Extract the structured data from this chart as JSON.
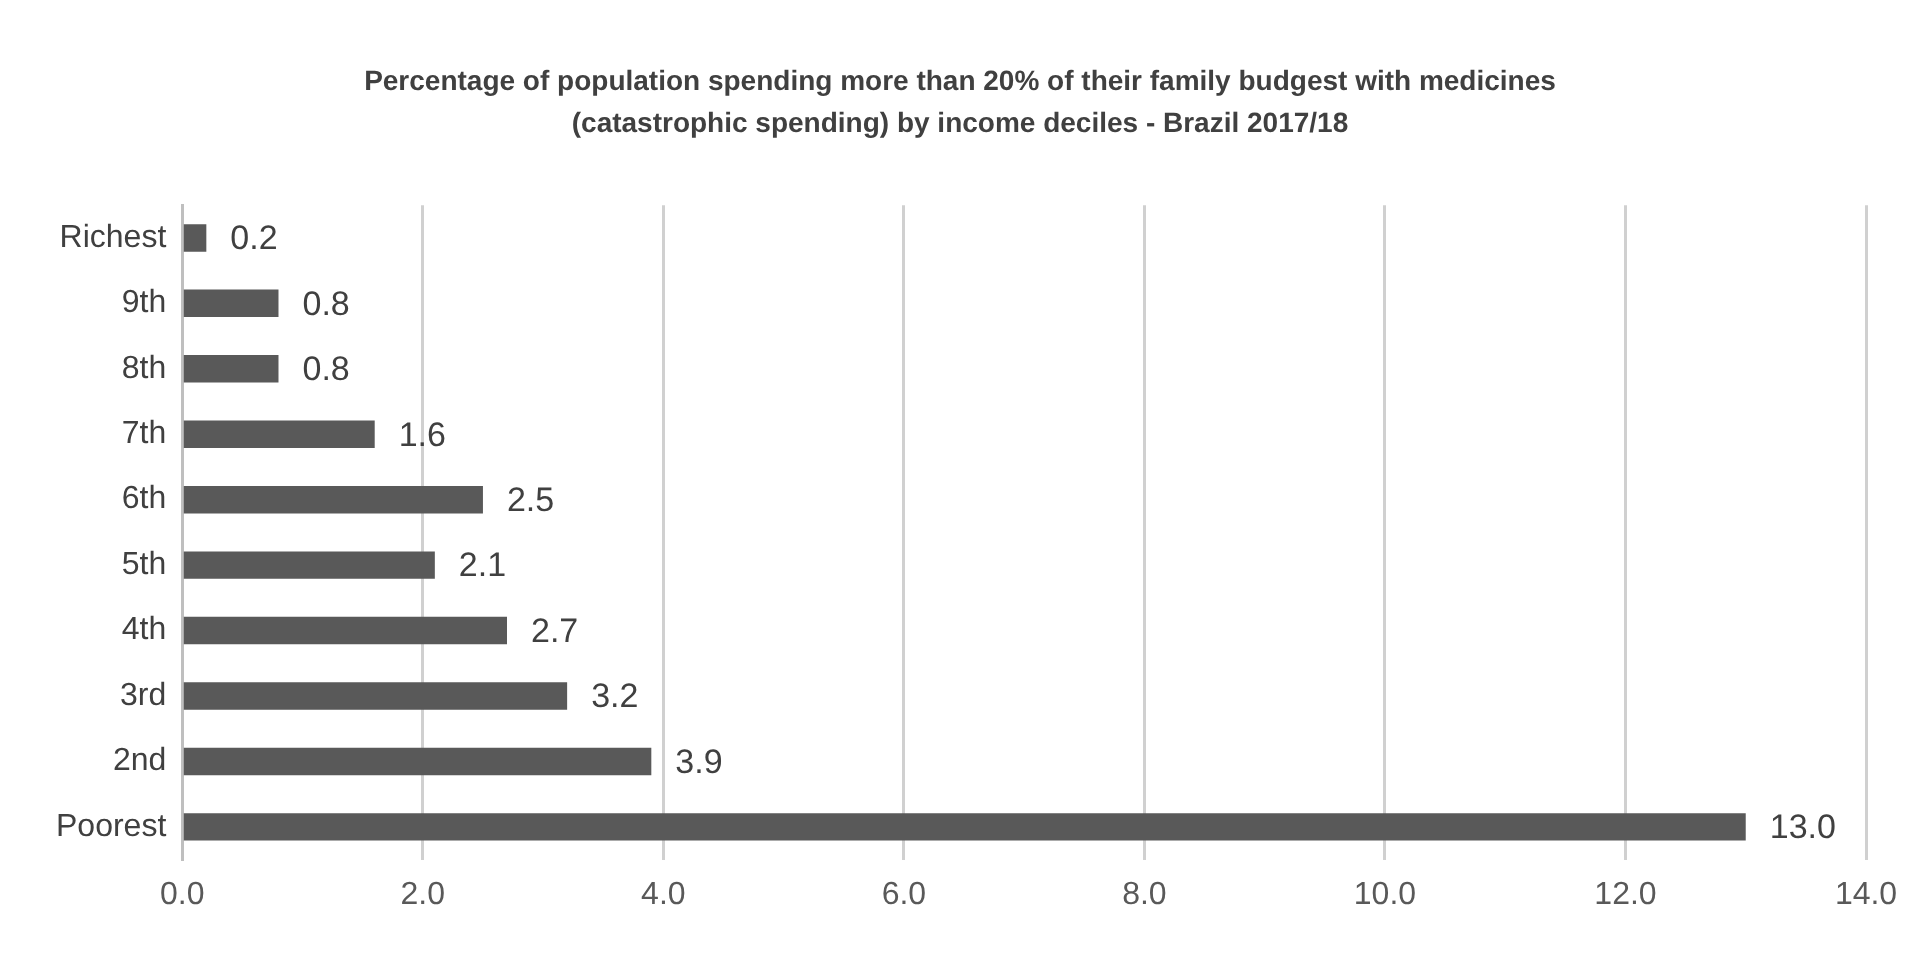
{
  "chart_data": {
    "type": "bar",
    "orientation": "horizontal",
    "title": "Percentage of population spending more than 20% of  their family budgest with medicines (catastrophic spending) by income deciles - Brazil 2017/18",
    "categories": [
      "Richest",
      "9th",
      "8th",
      "7th",
      "6th",
      "5th",
      "4th",
      "3rd",
      "2nd",
      "Poorest"
    ],
    "values": [
      0.2,
      0.8,
      0.8,
      1.6,
      2.5,
      2.1,
      2.7,
      3.2,
      3.9,
      13.0
    ],
    "value_labels": [
      "0.2",
      "0.8",
      "0.8",
      "1.6",
      "2.5",
      "2.1",
      "2.7",
      "3.2",
      "3.9",
      "13.0"
    ],
    "color": "#595959",
    "xlim": [
      0,
      14
    ],
    "xticks": [
      {
        "value": 0,
        "label": "0.0"
      },
      {
        "value": 2,
        "label": "2.0"
      },
      {
        "value": 4,
        "label": "4.0"
      },
      {
        "value": 6,
        "label": "6.0"
      },
      {
        "value": 8,
        "label": "8.0"
      },
      {
        "value": 10,
        "label": "10.0"
      },
      {
        "value": 12,
        "label": "12.0"
      },
      {
        "value": 14,
        "label": "14.0"
      }
    ],
    "grid": "x",
    "legend": false
  }
}
